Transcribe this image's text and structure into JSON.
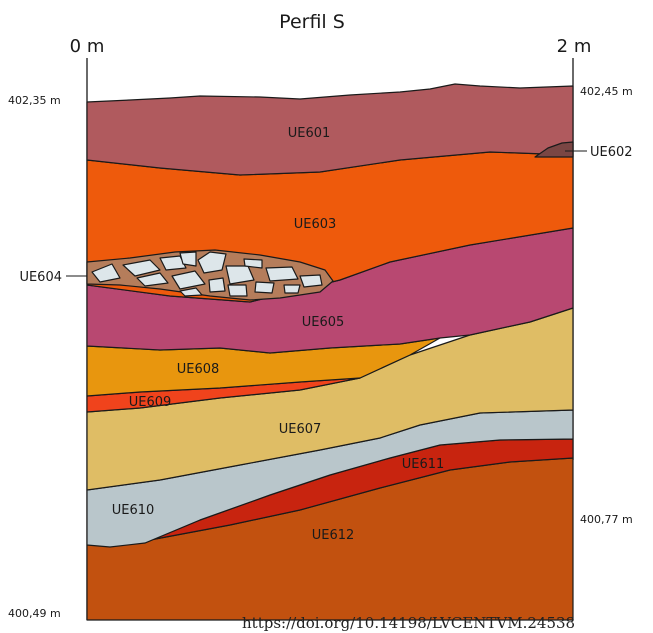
{
  "title": "Perfil S",
  "scale": {
    "left": "0 m",
    "right": "2 m"
  },
  "elevations": {
    "top_left": "402,35 m",
    "top_right": "402,45 m",
    "right_low": "400,77 m",
    "bottom_left": "400,49 m"
  },
  "layers": {
    "ue601": {
      "label": "UE601",
      "color": "#b05a5e"
    },
    "ue602": {
      "label": "UE602",
      "color": "#7a4644"
    },
    "ue603": {
      "label": "UE603",
      "color": "#ee5a0c"
    },
    "ue604": {
      "label": "UE604",
      "color": "#b57d5b",
      "stone_color": "#dde6ea"
    },
    "ue605": {
      "label": "UE605",
      "color": "#b84871"
    },
    "ue607": {
      "label": "UE607",
      "color": "#dfbd65"
    },
    "ue608": {
      "label": "UE608",
      "color": "#e8960e"
    },
    "ue609": {
      "label": "UE609",
      "color": "#f0431c"
    },
    "ue610": {
      "label": "UE610",
      "color": "#b9c6cb"
    },
    "ue611": {
      "label": "UE611",
      "color": "#c8240f"
    },
    "ue612": {
      "label": "UE612",
      "color": "#c2510f"
    }
  },
  "doi": "https://doi.org/10.14198/LVCENTVM.24538"
}
